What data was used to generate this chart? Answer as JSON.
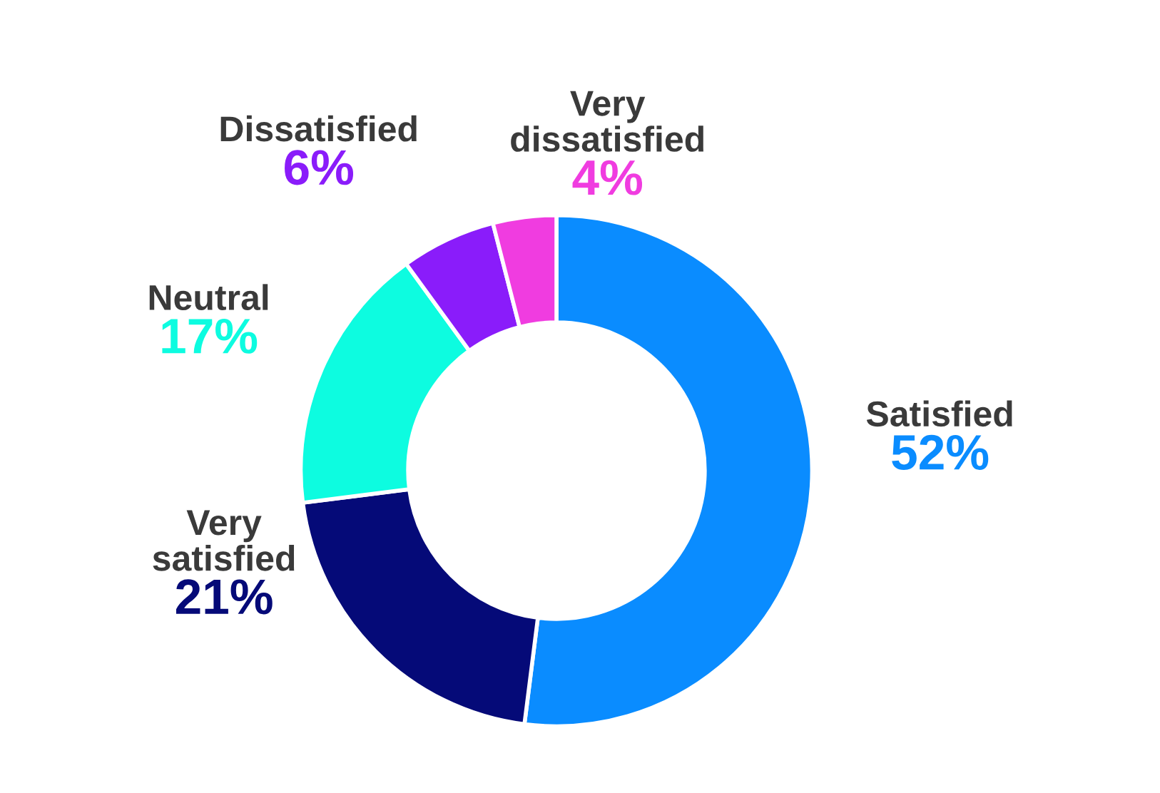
{
  "chart_data": {
    "type": "donut",
    "categories": [
      "Satisfied",
      "Very satisfied",
      "Neutral",
      "Dissatisfied",
      "Very dissatisfied"
    ],
    "values": [
      52,
      21,
      17,
      6,
      4
    ],
    "colors": [
      "#0a8cff",
      "#050a78",
      "#0dfce0",
      "#8a1cfa",
      "#f03ce0"
    ],
    "value_labels": [
      "52%",
      "21%",
      "17%",
      "6%",
      "4%"
    ],
    "legend": false
  }
}
